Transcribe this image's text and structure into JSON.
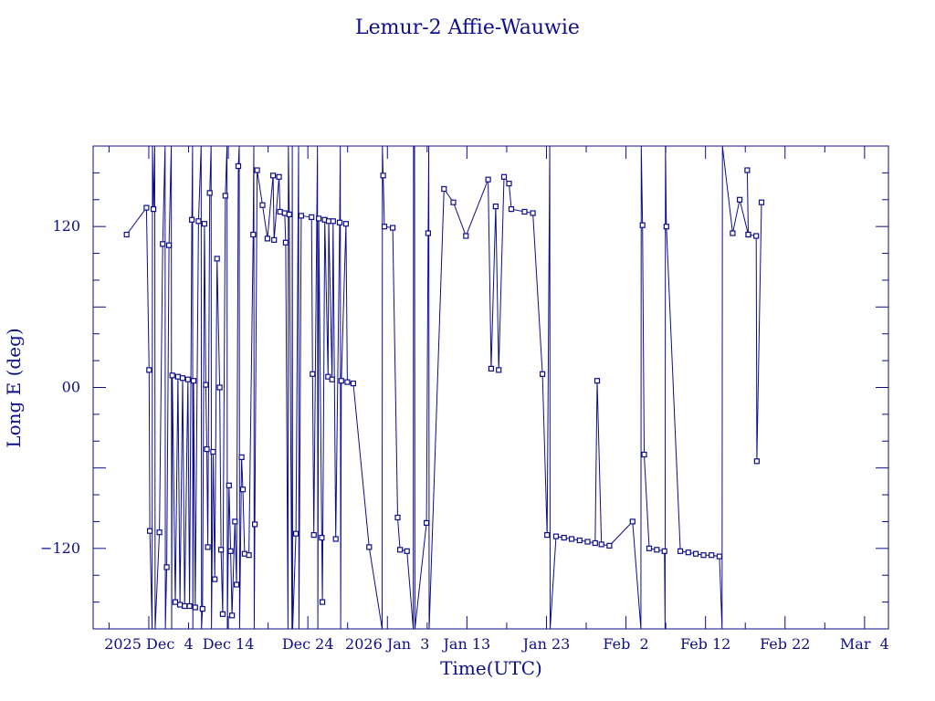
{
  "chart_data": {
    "type": "line",
    "title": "Lemur-2 Affie-Wauwie",
    "xlabel": "Time(UTC)",
    "ylabel": "Long E (deg)",
    "x_unit": "days",
    "xlim": [
      "2025-11-27",
      "2026-03-07"
    ],
    "ylim": [
      -180,
      180
    ],
    "y_ticks": [
      -120,
      0,
      120
    ],
    "y_tick_labels": [
      "−120",
      "00",
      "120"
    ],
    "x_ticks": [
      "2025-12-04",
      "2025-12-14",
      "2025-12-24",
      "2026-01-03",
      "2026-01-13",
      "2026-01-23",
      "2026-02-02",
      "2026-02-12",
      "2026-02-22",
      "2026-03-04"
    ],
    "x_tick_labels": [
      "2025 Dec  4",
      "Dec 14",
      "Dec 24",
      "2026 Jan  3",
      "Jan 13",
      "Jan 23",
      "Feb  2",
      "Feb 12",
      "Feb 22",
      "Mar  4"
    ],
    "line_color": "#0d0d8a",
    "series": [
      {
        "points": [
          [
            "2025-12-01T05:00",
            114
          ],
          [
            "2025-12-03T17:00",
            134
          ],
          [
            "2025-12-04T01:00",
            13
          ],
          [
            "2025-12-04T03:00",
            -107
          ],
          [
            "2025-12-04T10:00",
            -180
          ],
          [
            "2025-12-04T11:00",
            180
          ],
          [
            "2025-12-04T14:00",
            133
          ],
          [
            "2025-12-04T18:00",
            180
          ],
          [
            "2025-12-04T19:00",
            -180
          ],
          [
            "2025-12-05T08:00",
            -108
          ],
          [
            "2025-12-05T18:00",
            107
          ],
          [
            "2025-12-06T01:00",
            180
          ],
          [
            "2025-12-06T02:00",
            -180
          ],
          [
            "2025-12-06T06:00",
            -134
          ],
          [
            "2025-12-06T13:00",
            106
          ],
          [
            "2025-12-06T20:00",
            180
          ],
          [
            "2025-12-06T21:00",
            -180
          ],
          [
            "2025-12-06T23:00",
            9
          ],
          [
            "2025-12-07T08:00",
            -160
          ],
          [
            "2025-12-07T16:00",
            8
          ],
          [
            "2025-12-07T22:00",
            -162
          ],
          [
            "2025-12-08T06:00",
            7
          ],
          [
            "2025-12-08T12:00",
            -163
          ],
          [
            "2025-12-08T22:00",
            6
          ],
          [
            "2025-12-09T03:00",
            -163
          ],
          [
            "2025-12-09T10:00",
            125
          ],
          [
            "2025-12-09T12:00",
            180
          ],
          [
            "2025-12-09T13:00",
            -180
          ],
          [
            "2025-12-09T15:00",
            5
          ],
          [
            "2025-12-09T20:00",
            -164
          ],
          [
            "2025-12-10T06:00",
            124
          ],
          [
            "2025-12-10T14:00",
            180
          ],
          [
            "2025-12-10T15:00",
            -180
          ],
          [
            "2025-12-10T18:00",
            -165
          ],
          [
            "2025-12-11T00:00",
            122
          ],
          [
            "2025-12-11T04:00",
            2
          ],
          [
            "2025-12-11T07:00",
            -46
          ],
          [
            "2025-12-11T10:00",
            -119
          ],
          [
            "2025-12-11T16:00",
            145
          ],
          [
            "2025-12-11T20:00",
            180
          ],
          [
            "2025-12-11T21:00",
            -180
          ],
          [
            "2025-12-12T02:00",
            -48
          ],
          [
            "2025-12-12T07:00",
            -143
          ],
          [
            "2025-12-12T14:00",
            96
          ],
          [
            "2025-12-12T22:00",
            0
          ],
          [
            "2025-12-13T02:00",
            -121
          ],
          [
            "2025-12-13T07:00",
            -169
          ],
          [
            "2025-12-13T15:00",
            143
          ],
          [
            "2025-12-13T20:00",
            180
          ],
          [
            "2025-12-13T21:00",
            -180
          ],
          [
            "2025-12-14T02:00",
            -73
          ],
          [
            "2025-12-14T07:00",
            -122
          ],
          [
            "2025-12-14T11:00",
            -170
          ],
          [
            "2025-12-14T20:00",
            -100
          ],
          [
            "2025-12-15T01:00",
            -147
          ],
          [
            "2025-12-15T06:00",
            165
          ],
          [
            "2025-12-15T09:00",
            180
          ],
          [
            "2025-12-15T10:00",
            -180
          ],
          [
            "2025-12-15T16:00",
            -52
          ],
          [
            "2025-12-15T20:00",
            -76
          ],
          [
            "2025-12-16T01:00",
            -124
          ],
          [
            "2025-12-16T14:00",
            -125
          ],
          [
            "2025-12-17T03:00",
            114
          ],
          [
            "2025-12-17T05:00",
            180
          ],
          [
            "2025-12-17T06:00",
            -180
          ],
          [
            "2025-12-17T08:00",
            -102
          ],
          [
            "2025-12-17T15:00",
            162
          ],
          [
            "2025-12-18T07:00",
            136
          ],
          [
            "2025-12-18T22:00",
            111
          ],
          [
            "2025-12-19T15:00",
            158
          ],
          [
            "2025-12-19T18:00",
            110
          ],
          [
            "2025-12-20T09:00",
            157
          ],
          [
            "2025-12-20T12:00",
            131
          ],
          [
            "2025-12-21T02:00",
            130
          ],
          [
            "2025-12-21T05:00",
            108
          ],
          [
            "2025-12-21T12:00",
            -180
          ],
          [
            "2025-12-21T13:00",
            180
          ],
          [
            "2025-12-21T16:00",
            129
          ],
          [
            "2025-12-22T00:00",
            -180
          ],
          [
            "2025-12-22T01:00",
            180
          ],
          [
            "2025-12-22T02:00",
            -180
          ],
          [
            "2025-12-22T12:00",
            -109
          ],
          [
            "2025-12-22T20:00",
            180
          ],
          [
            "2025-12-22T21:00",
            -180
          ],
          [
            "2025-12-23T04:00",
            128
          ],
          [
            "2025-12-24T11:00",
            127
          ],
          [
            "2025-12-24T14:00",
            10
          ],
          [
            "2025-12-24T18:00",
            -110
          ],
          [
            "2025-12-25T05:00",
            180
          ],
          [
            "2025-12-25T06:00",
            -180
          ],
          [
            "2025-12-25T09:00",
            126
          ],
          [
            "2025-12-25T18:00",
            -112
          ],
          [
            "2025-12-25T20:00",
            -160
          ],
          [
            "2025-12-26T03:00",
            125
          ],
          [
            "2025-12-26T13:00",
            8
          ],
          [
            "2025-12-26T15:00",
            124
          ],
          [
            "2025-12-27T01:00",
            6
          ],
          [
            "2025-12-27T04:00",
            124
          ],
          [
            "2025-12-27T12:00",
            -113
          ],
          [
            "2025-12-28T00:00",
            123
          ],
          [
            "2025-12-28T02:00",
            180
          ],
          [
            "2025-12-28T03:00",
            -180
          ],
          [
            "2025-12-28T05:00",
            5
          ],
          [
            "2025-12-28T19:00",
            122
          ],
          [
            "2025-12-28T23:00",
            4
          ],
          [
            "2025-12-29T17:00",
            3
          ],
          [
            "2025-12-31T17:00",
            -119
          ],
          [
            "2026-01-02T08:00",
            -180
          ],
          [
            "2026-01-02T09:00",
            180
          ],
          [
            "2026-01-02T11:00",
            158
          ],
          [
            "2026-01-02T15:00",
            120
          ],
          [
            "2026-01-03T16:00",
            119
          ],
          [
            "2026-01-04T07:00",
            -97
          ],
          [
            "2026-01-04T14:00",
            -121
          ],
          [
            "2026-01-05T11:00",
            -122
          ],
          [
            "2026-01-06T06:00",
            -180
          ],
          [
            "2026-01-06T07:00",
            180
          ],
          [
            "2026-01-06T10:00",
            180
          ],
          [
            "2026-01-06T11:00",
            -180
          ],
          [
            "2026-01-07T22:00",
            -101
          ],
          [
            "2026-01-08T03:00",
            115
          ],
          [
            "2026-01-08T05:00",
            180
          ],
          [
            "2026-01-08T06:00",
            -180
          ],
          [
            "2026-01-10T03:00",
            148
          ],
          [
            "2026-01-11T07:00",
            138
          ],
          [
            "2026-01-12T21:00",
            113
          ],
          [
            "2026-01-15T16:00",
            155
          ],
          [
            "2026-01-16T01:00",
            14
          ],
          [
            "2026-01-16T15:00",
            135
          ],
          [
            "2026-01-17T00:00",
            13
          ],
          [
            "2026-01-17T16:00",
            157
          ],
          [
            "2026-01-18T07:00",
            152
          ],
          [
            "2026-01-18T14:00",
            133
          ],
          [
            "2026-01-20T06:00",
            131
          ],
          [
            "2026-01-21T07:00",
            130
          ],
          [
            "2026-01-22T12:00",
            10
          ],
          [
            "2026-01-23T02:00",
            -110
          ],
          [
            "2026-01-23T10:00",
            180
          ],
          [
            "2026-01-23T11:00",
            -180
          ],
          [
            "2026-01-24T05:00",
            -111
          ],
          [
            "2026-01-25T05:00",
            -112
          ],
          [
            "2026-01-26T04:00",
            -113
          ],
          [
            "2026-01-27T04:00",
            -114
          ],
          [
            "2026-01-28T04:00",
            -115
          ],
          [
            "2026-01-29T03:00",
            -116
          ],
          [
            "2026-01-29T09:00",
            5
          ],
          [
            "2026-01-29T22:00",
            -117
          ],
          [
            "2026-01-30T22:00",
            -118
          ],
          [
            "2026-02-02T20:00",
            -100
          ],
          [
            "2026-02-03T21:00",
            -180
          ],
          [
            "2026-02-03T22:00",
            180
          ],
          [
            "2026-02-04T02:00",
            121
          ],
          [
            "2026-02-04T07:00",
            -50
          ],
          [
            "2026-02-04T22:00",
            -120
          ],
          [
            "2026-02-05T21:00",
            -121
          ],
          [
            "2026-02-06T20:00",
            -122
          ],
          [
            "2026-02-06T22:00",
            -180
          ],
          [
            "2026-02-06T23:00",
            180
          ],
          [
            "2026-02-07T02:00",
            120
          ],
          [
            "2026-02-08T20:00",
            -122
          ],
          [
            "2026-02-09T20:00",
            -123
          ],
          [
            "2026-02-10T19:00",
            -124
          ],
          [
            "2026-02-11T18:00",
            -125
          ],
          [
            "2026-02-12T18:00",
            -125
          ],
          [
            "2026-02-13T18:00",
            -126
          ],
          [
            "2026-02-14T02:00",
            -180
          ],
          [
            "2026-02-14T03:00",
            180
          ],
          [
            "2026-02-15T10:00",
            115
          ],
          [
            "2026-02-16T07:00",
            140
          ],
          [
            "2026-02-17T09:00",
            114
          ],
          [
            "2026-02-18T09:00",
            113
          ],
          [
            "2026-02-18T11:00",
            -55
          ],
          [
            "2026-02-19T01:00",
            138
          ]
        ]
      },
      {
        "points": [
          [
            "2026-02-17T06:00",
            162
          ],
          [
            "2026-02-17T09:00",
            114
          ]
        ]
      }
    ]
  }
}
